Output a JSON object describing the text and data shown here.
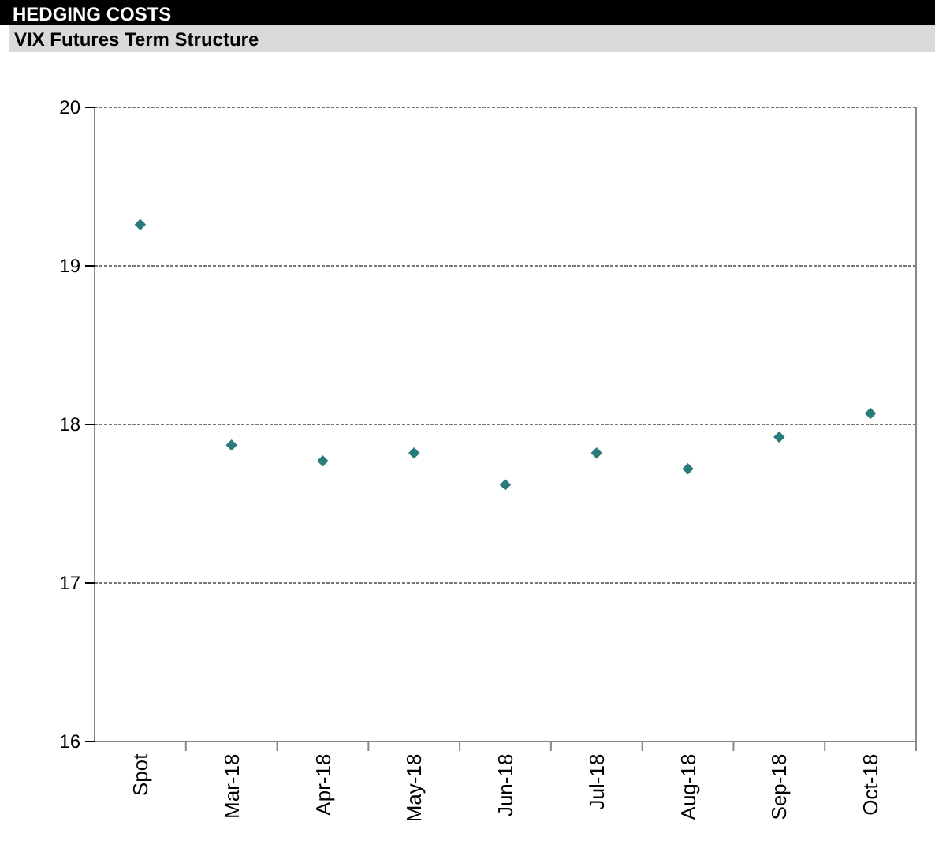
{
  "chart_data": {
    "type": "scatter",
    "title": "HEDGING COSTS",
    "subtitle": "VIX Futures Term Structure",
    "categories": [
      "Spot",
      "Mar-18",
      "Apr-18",
      "May-18",
      "Jun-18",
      "Jul-18",
      "Aug-18",
      "Sep-18",
      "Oct-18"
    ],
    "series": [
      {
        "color": "#2a7b7b",
        "values": [
          19.26,
          17.87,
          17.77,
          17.82,
          17.62,
          17.82,
          17.72,
          17.92,
          18.07
        ]
      }
    ],
    "ylim": [
      16,
      20
    ],
    "yticks": [
      16,
      17,
      18,
      19,
      20
    ],
    "grid": "y",
    "marker": "diamond"
  }
}
